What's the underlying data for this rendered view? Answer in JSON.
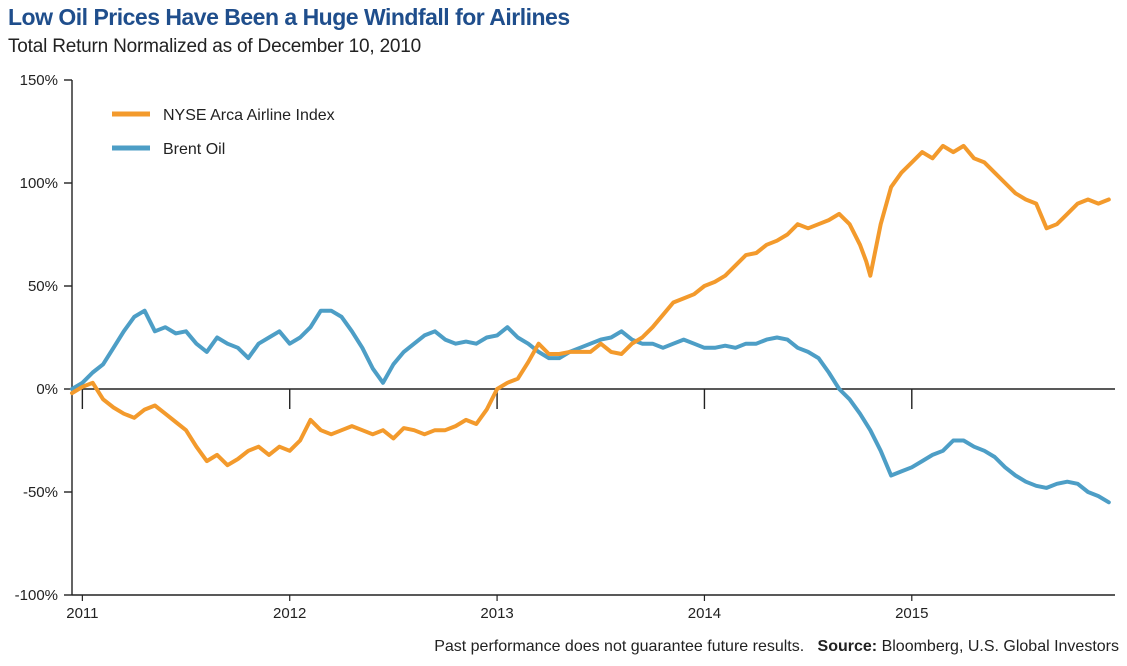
{
  "title": "Low Oil Prices Have Been a Huge Windfall for Airlines",
  "subtitle": "Total Return Normalized as of December 10, 2010",
  "footer": {
    "disclaimer": "Past performance does not guarantee future results.",
    "source_label": "Source:",
    "source_text": "Bloomberg, U.S. Global Investors"
  },
  "colors": {
    "airline": "#f39a2c",
    "oil": "#4d9ec6",
    "title": "#1f4e8c"
  },
  "chart_data": {
    "type": "line",
    "title": "Low Oil Prices Have Been a Huge Windfall for Airlines",
    "subtitle": "Total Return Normalized as of December 10, 2010",
    "xlabel": "",
    "ylabel": "",
    "xlim": [
      2010.95,
      2015.98
    ],
    "ylim": [
      -100,
      150
    ],
    "yticks": [
      150,
      100,
      50,
      0,
      -50,
      -100
    ],
    "ytick_labels": [
      "150%",
      "100%",
      "50%",
      "0%",
      "-50%",
      "-100%"
    ],
    "xticks": [
      2011,
      2012,
      2013,
      2014,
      2015
    ],
    "xtick_labels": [
      "2011",
      "2012",
      "2013",
      "2014",
      "2015"
    ],
    "legend_position": "top-left",
    "series": [
      {
        "name": "NYSE Arca Airline Index",
        "color": "#f39a2c",
        "x": [
          2010.95,
          2011.0,
          2011.05,
          2011.1,
          2011.15,
          2011.2,
          2011.25,
          2011.3,
          2011.35,
          2011.4,
          2011.45,
          2011.5,
          2011.55,
          2011.6,
          2011.65,
          2011.7,
          2011.75,
          2011.8,
          2011.85,
          2011.9,
          2011.95,
          2012.0,
          2012.05,
          2012.1,
          2012.15,
          2012.2,
          2012.25,
          2012.3,
          2012.35,
          2012.4,
          2012.45,
          2012.5,
          2012.55,
          2012.6,
          2012.65,
          2012.7,
          2012.75,
          2012.8,
          2012.85,
          2012.9,
          2012.95,
          2013.0,
          2013.05,
          2013.1,
          2013.15,
          2013.2,
          2013.25,
          2013.3,
          2013.35,
          2013.4,
          2013.45,
          2013.5,
          2013.55,
          2013.6,
          2013.65,
          2013.7,
          2013.75,
          2013.8,
          2013.85,
          2013.9,
          2013.95,
          2014.0,
          2014.05,
          2014.1,
          2014.15,
          2014.2,
          2014.25,
          2014.3,
          2014.35,
          2014.4,
          2014.45,
          2014.5,
          2014.55,
          2014.6,
          2014.65,
          2014.7,
          2014.75,
          2014.78,
          2014.8,
          2014.85,
          2014.9,
          2014.95,
          2015.0,
          2015.05,
          2015.1,
          2015.15,
          2015.2,
          2015.25,
          2015.3,
          2015.35,
          2015.4,
          2015.45,
          2015.5,
          2015.55,
          2015.6,
          2015.65,
          2015.7,
          2015.75,
          2015.8,
          2015.85,
          2015.9,
          2015.95
        ],
        "values": [
          -2,
          1,
          3,
          -5,
          -9,
          -12,
          -14,
          -10,
          -8,
          -12,
          -16,
          -20,
          -28,
          -35,
          -32,
          -37,
          -34,
          -30,
          -28,
          -32,
          -28,
          -30,
          -25,
          -15,
          -20,
          -22,
          -20,
          -18,
          -20,
          -22,
          -20,
          -24,
          -19,
          -20,
          -22,
          -20,
          -20,
          -18,
          -15,
          -17,
          -10,
          0,
          3,
          5,
          13,
          22,
          17,
          17,
          18,
          18,
          18,
          22,
          18,
          17,
          22,
          25,
          30,
          36,
          42,
          44,
          46,
          50,
          52,
          55,
          60,
          65,
          66,
          70,
          72,
          75,
          80,
          78,
          80,
          82,
          85,
          80,
          70,
          62,
          55,
          80,
          98,
          105,
          110,
          115,
          112,
          118,
          115,
          118,
          112,
          110,
          105,
          100,
          95,
          92,
          90,
          78,
          80,
          85,
          90,
          92,
          90,
          92
        ]
      },
      {
        "name": "Brent Oil",
        "color": "#4d9ec6",
        "x": [
          2010.95,
          2011.0,
          2011.05,
          2011.1,
          2011.15,
          2011.2,
          2011.25,
          2011.3,
          2011.35,
          2011.4,
          2011.45,
          2011.5,
          2011.55,
          2011.6,
          2011.65,
          2011.7,
          2011.75,
          2011.8,
          2011.85,
          2011.9,
          2011.95,
          2012.0,
          2012.05,
          2012.1,
          2012.15,
          2012.2,
          2012.25,
          2012.3,
          2012.35,
          2012.4,
          2012.45,
          2012.5,
          2012.55,
          2012.6,
          2012.65,
          2012.7,
          2012.75,
          2012.8,
          2012.85,
          2012.9,
          2012.95,
          2013.0,
          2013.05,
          2013.1,
          2013.15,
          2013.2,
          2013.25,
          2013.3,
          2013.35,
          2013.4,
          2013.45,
          2013.5,
          2013.55,
          2013.6,
          2013.65,
          2013.7,
          2013.75,
          2013.8,
          2013.85,
          2013.9,
          2013.95,
          2014.0,
          2014.05,
          2014.1,
          2014.15,
          2014.2,
          2014.25,
          2014.3,
          2014.35,
          2014.4,
          2014.45,
          2014.5,
          2014.55,
          2014.6,
          2014.65,
          2014.7,
          2014.75,
          2014.8,
          2014.85,
          2014.9,
          2014.95,
          2015.0,
          2015.05,
          2015.1,
          2015.15,
          2015.2,
          2015.25,
          2015.3,
          2015.35,
          2015.4,
          2015.45,
          2015.5,
          2015.55,
          2015.6,
          2015.65,
          2015.7,
          2015.75,
          2015.8,
          2015.85,
          2015.9,
          2015.95
        ],
        "values": [
          0,
          3,
          8,
          12,
          20,
          28,
          35,
          38,
          28,
          30,
          27,
          28,
          22,
          18,
          25,
          22,
          20,
          15,
          22,
          25,
          28,
          22,
          25,
          30,
          38,
          38,
          35,
          28,
          20,
          10,
          3,
          12,
          18,
          22,
          26,
          28,
          24,
          22,
          23,
          22,
          25,
          26,
          30,
          25,
          22,
          18,
          15,
          15,
          18,
          20,
          22,
          24,
          25,
          28,
          24,
          22,
          22,
          20,
          22,
          24,
          22,
          20,
          20,
          21,
          20,
          22,
          22,
          24,
          25,
          24,
          20,
          18,
          15,
          8,
          0,
          -5,
          -12,
          -20,
          -30,
          -42,
          -40,
          -38,
          -35,
          -32,
          -30,
          -25,
          -25,
          -28,
          -30,
          -33,
          -38,
          -42,
          -45,
          -47,
          -48,
          -46,
          -45,
          -46,
          -50,
          -52,
          -55
        ]
      }
    ]
  }
}
